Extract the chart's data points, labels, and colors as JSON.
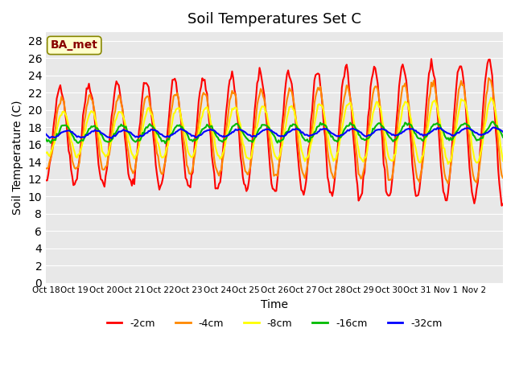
{
  "title": "Soil Temperatures Set C",
  "xlabel": "Time",
  "ylabel": "Soil Temperature (C)",
  "ylim": [
    0,
    29
  ],
  "yticks": [
    0,
    2,
    4,
    6,
    8,
    10,
    12,
    14,
    16,
    18,
    20,
    22,
    24,
    26,
    28
  ],
  "x_labels": [
    "Oct 18",
    "Oct 19",
    "Oct 20",
    "Oct 21",
    "Oct 22",
    "Oct 23",
    "Oct 24",
    "Oct 25",
    "Oct 26",
    "Oct 27",
    "Oct 28",
    "Oct 29",
    "Oct 30",
    "Oct 31",
    "Nov 1",
    "Nov 2"
  ],
  "annotation_text": "BA_met",
  "annotation_bg": "#ffffcc",
  "annotation_border": "#888800",
  "annotation_text_color": "#880000",
  "colors": {
    "-2cm": "#ff0000",
    "-4cm": "#ff8800",
    "-8cm": "#ffff00",
    "-16cm": "#00bb00",
    "-32cm": "#0000ff"
  },
  "legend_labels": [
    "-2cm",
    "-4cm",
    "-8cm",
    "-16cm",
    "-32cm"
  ],
  "plot_bg": "#e8e8e8",
  "grid_color": "#ffffff",
  "line_width": 1.5,
  "n_days": 16,
  "pts_per_day": 24,
  "amp_2cm": 5.5,
  "amp_4cm": 4.0,
  "amp_8cm": 2.5,
  "amp_16cm": 1.2,
  "amp_32cm": 0.4,
  "base_mean": 17.2,
  "base_slope": 0.02
}
